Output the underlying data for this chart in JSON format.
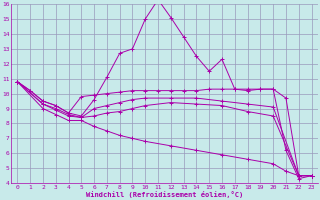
{
  "xlabel": "Windchill (Refroidissement éolien,°C)",
  "xlim": [
    -0.5,
    23.5
  ],
  "ylim": [
    4,
    16
  ],
  "yticks": [
    4,
    5,
    6,
    7,
    8,
    9,
    10,
    11,
    12,
    13,
    14,
    15,
    16
  ],
  "xticks": [
    0,
    1,
    2,
    3,
    4,
    5,
    6,
    7,
    8,
    9,
    10,
    11,
    12,
    13,
    14,
    15,
    16,
    17,
    18,
    19,
    20,
    21,
    22,
    23
  ],
  "bg_color": "#c8eaea",
  "line_color": "#aa00aa",
  "grid_color": "#9999bb",
  "series": [
    {
      "x": [
        0,
        1,
        2,
        3,
        4,
        5,
        6,
        7,
        8,
        9,
        10,
        11,
        12,
        13,
        14,
        15,
        16,
        17,
        18,
        19,
        20,
        21,
        22,
        23
      ],
      "y": [
        10.8,
        10.2,
        9.5,
        9.2,
        8.7,
        8.5,
        9.6,
        11.1,
        12.7,
        13.0,
        15.0,
        16.3,
        15.1,
        13.8,
        12.5,
        11.5,
        12.3,
        10.3,
        10.2,
        10.3,
        10.3,
        6.2,
        4.3,
        4.5
      ]
    },
    {
      "x": [
        0,
        1,
        2,
        3,
        4,
        5,
        6,
        7,
        8,
        9,
        10,
        11,
        12,
        13,
        14,
        15,
        16,
        17,
        18,
        19,
        20,
        21,
        22,
        23
      ],
      "y": [
        10.8,
        10.2,
        9.5,
        9.2,
        8.7,
        9.8,
        9.9,
        10.0,
        10.1,
        10.2,
        10.2,
        10.2,
        10.2,
        10.2,
        10.2,
        10.3,
        10.3,
        10.3,
        10.3,
        10.3,
        10.3,
        9.7,
        4.5,
        4.5
      ]
    },
    {
      "x": [
        0,
        2,
        3,
        4,
        5,
        6,
        7,
        8,
        9,
        10,
        12,
        14,
        16,
        18,
        20,
        22,
        23
      ],
      "y": [
        10.8,
        9.3,
        9.0,
        8.6,
        8.4,
        9.0,
        9.2,
        9.4,
        9.6,
        9.7,
        9.7,
        9.7,
        9.5,
        9.3,
        9.1,
        4.5,
        4.5
      ]
    },
    {
      "x": [
        0,
        2,
        3,
        4,
        5,
        6,
        7,
        8,
        9,
        10,
        12,
        14,
        16,
        18,
        20,
        22,
        23
      ],
      "y": [
        10.8,
        9.3,
        8.9,
        8.5,
        8.4,
        8.5,
        8.7,
        8.8,
        9.0,
        9.2,
        9.4,
        9.3,
        9.2,
        8.8,
        8.5,
        4.5,
        4.5
      ]
    },
    {
      "x": [
        0,
        2,
        3,
        4,
        5,
        6,
        7,
        8,
        9,
        10,
        12,
        14,
        16,
        18,
        20,
        21,
        22,
        23
      ],
      "y": [
        10.8,
        9.0,
        8.6,
        8.2,
        8.2,
        7.8,
        7.5,
        7.2,
        7.0,
        6.8,
        6.5,
        6.2,
        5.9,
        5.6,
        5.3,
        4.8,
        4.5,
        4.5
      ]
    }
  ]
}
